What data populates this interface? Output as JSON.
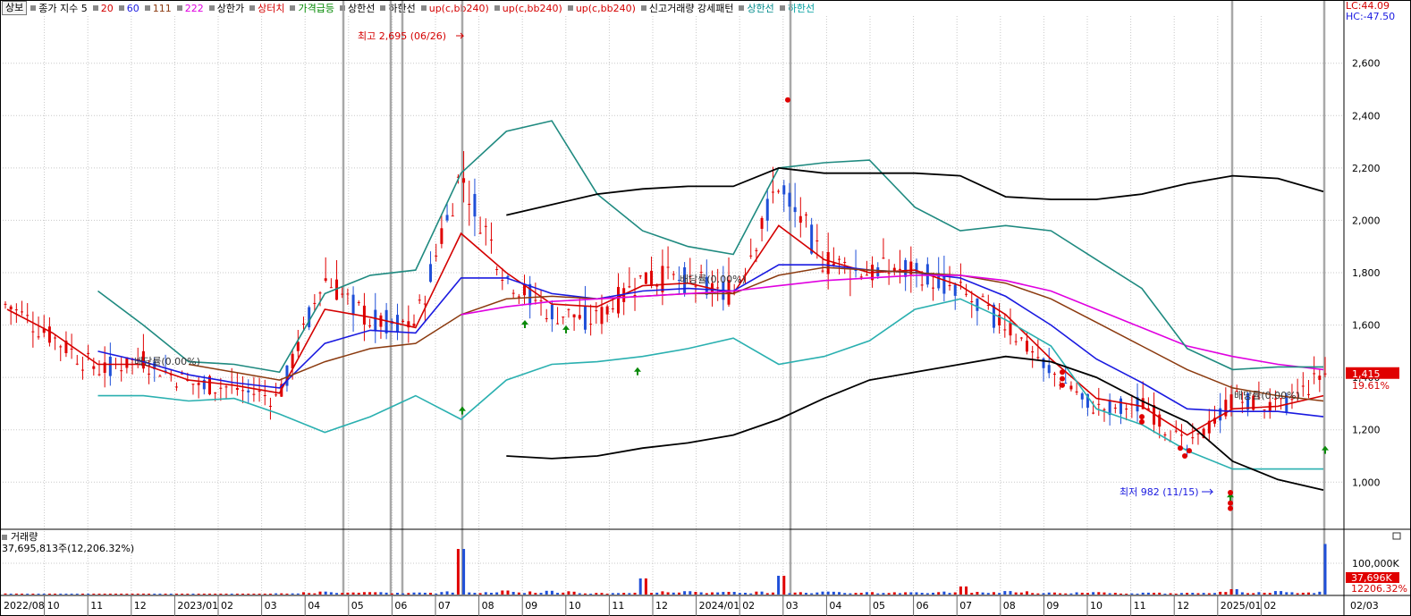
{
  "legend": {
    "tab": "상보",
    "items": [
      {
        "label": "종가 지수 5",
        "color": "#000000"
      },
      {
        "label": "20",
        "color": "#d40000"
      },
      {
        "label": "60",
        "color": "#1a1ae0"
      },
      {
        "label": "111",
        "color": "#8b3a0f"
      },
      {
        "label": "222",
        "color": "#e000e0"
      },
      {
        "label": "상한가",
        "color": "#000000"
      },
      {
        "label": "상터치",
        "color": "#d40000"
      },
      {
        "label": "가격급등",
        "color": "#008800"
      },
      {
        "label": "상한선",
        "color": "#000000"
      },
      {
        "label": "하한선",
        "color": "#000000"
      },
      {
        "label": "up(c,bb240)",
        "color": "#d40000"
      },
      {
        "label": "up(c,bb240)",
        "color": "#d40000"
      },
      {
        "label": "up(c,bb240)",
        "color": "#d40000"
      },
      {
        "label": "신고거래량 강세패턴",
        "color": "#000000"
      },
      {
        "label": "상한선",
        "color": "#008b8b"
      },
      {
        "label": "하한선",
        "color": "#00a0a0"
      }
    ]
  },
  "lc_hc": {
    "lc": "LC:44.09",
    "hc": "HC:-47.50"
  },
  "annotations": {
    "high": "최고 2,695 (06/26)",
    "low": "최저 982 (11/15)",
    "divrate": "배당률(0.00%)"
  },
  "current": {
    "price": "1,415",
    "change": "19.61%"
  },
  "volume": {
    "title": "거래량",
    "value": "37,695,813주(12,206.32%)",
    "axis_label": "100,000K",
    "cur": "37,696K",
    "pct": "12206.32%"
  },
  "x_axis_labels": [
    "2022/08",
    "10",
    "11",
    "12",
    "2023/01",
    "02",
    "03",
    "04",
    "05",
    "06",
    "07",
    "08",
    "09",
    "10",
    "11",
    "12",
    "2024/01",
    "02",
    "03",
    "04",
    "05",
    "06",
    "07",
    "08",
    "09",
    "10",
    "11",
    "12",
    "2025/01",
    "02",
    "02/03"
  ],
  "colors": {
    "up": "#e00000",
    "down": "#1f4fd8",
    "ma5": "#000000",
    "ma20": "#d40000",
    "ma60": "#1a1ae0",
    "ma111": "#8b3a0f",
    "ma222": "#e000e0",
    "bb_upper": "#1f8a80",
    "bb_lower": "#2ab0b0",
    "env": "#000000",
    "grid": "#c8c8c8"
  },
  "chart_data": {
    "type": "line",
    "title": "",
    "ylim": [
      820,
      2780
    ],
    "y_ticks": [
      1000,
      1200,
      1400,
      1600,
      1800,
      2000,
      2200,
      2400,
      2600
    ],
    "y_tick_labels": [
      "1,000",
      "1,200",
      "1,400",
      "1,600",
      "1,800",
      "2,000",
      "2,200",
      "2,400",
      "2,600"
    ],
    "categories": [
      "2022/08",
      "10",
      "11",
      "12",
      "2023/01",
      "02",
      "03",
      "04",
      "05",
      "06",
      "07",
      "08",
      "09",
      "10",
      "11",
      "12",
      "2024/01",
      "02",
      "03",
      "04",
      "05",
      "06",
      "07",
      "08",
      "09",
      "10",
      "11",
      "12",
      "2025/01",
      "02"
    ],
    "series": [
      {
        "key": "close",
        "values": [
          1680,
          1560,
          1430,
          1470,
          1380,
          1360,
          1320,
          1780,
          1620,
          1600,
          2180,
          1790,
          1650,
          1620,
          1780,
          1770,
          1720,
          2150,
          1840,
          1800,
          1820,
          1720,
          1600,
          1420,
          1280,
          1300,
          1120,
          1320,
          1280,
          1415
        ]
      },
      {
        "key": "ma20",
        "values": [
          1660,
          1570,
          1450,
          1450,
          1390,
          1370,
          1340,
          1660,
          1630,
          1590,
          1950,
          1800,
          1680,
          1670,
          1750,
          1760,
          1720,
          1980,
          1850,
          1800,
          1810,
          1750,
          1640,
          1470,
          1320,
          1290,
          1180,
          1280,
          1290,
          1330
        ]
      },
      {
        "key": "ma60",
        "values": [
          null,
          null,
          1500,
          1460,
          1410,
          1380,
          1360,
          1530,
          1580,
          1570,
          1780,
          1780,
          1720,
          1700,
          1730,
          1740,
          1730,
          1830,
          1830,
          1810,
          1800,
          1780,
          1710,
          1600,
          1470,
          1380,
          1280,
          1270,
          1270,
          1250
        ]
      },
      {
        "key": "ma111",
        "values": [
          null,
          null,
          null,
          null,
          1450,
          1420,
          1390,
          1460,
          1510,
          1530,
          1640,
          1700,
          1710,
          1700,
          1710,
          1720,
          1720,
          1790,
          1820,
          1810,
          1800,
          1790,
          1760,
          1700,
          1610,
          1520,
          1430,
          1360,
          1330,
          1310
        ]
      },
      {
        "key": "ma222",
        "values": [
          null,
          null,
          null,
          null,
          null,
          null,
          null,
          null,
          null,
          null,
          1640,
          1670,
          1690,
          1700,
          1710,
          1720,
          1730,
          1750,
          1770,
          1780,
          1790,
          1790,
          1770,
          1730,
          1660,
          1590,
          1520,
          1480,
          1450,
          1430
        ]
      },
      {
        "key": "bb_upper",
        "values": [
          null,
          null,
          1730,
          1600,
          1460,
          1450,
          1420,
          1720,
          1790,
          1810,
          2180,
          2340,
          2380,
          2100,
          1960,
          1900,
          1870,
          2200,
          2220,
          2230,
          2050,
          1960,
          1980,
          1960,
          1850,
          1740,
          1510,
          1430,
          1440,
          1440
        ]
      },
      {
        "key": "bb_lower",
        "values": [
          null,
          null,
          1330,
          1330,
          1310,
          1320,
          1260,
          1190,
          1250,
          1330,
          1240,
          1390,
          1450,
          1460,
          1480,
          1510,
          1550,
          1450,
          1480,
          1540,
          1660,
          1700,
          1620,
          1520,
          1280,
          1220,
          1120,
          1050,
          1050,
          1050
        ]
      },
      {
        "key": "env_upper",
        "values": [
          null,
          null,
          null,
          null,
          null,
          null,
          null,
          null,
          null,
          null,
          null,
          2020,
          2060,
          2100,
          2120,
          2130,
          2130,
          2200,
          2180,
          2180,
          2180,
          2170,
          2090,
          2080,
          2080,
          2100,
          2140,
          2170,
          2160,
          2110
        ]
      },
      {
        "key": "env_lower",
        "values": [
          null,
          null,
          null,
          null,
          null,
          null,
          null,
          null,
          null,
          null,
          null,
          1100,
          1090,
          1100,
          1130,
          1150,
          1180,
          1240,
          1320,
          1390,
          1420,
          1450,
          1480,
          1460,
          1400,
          1310,
          1230,
          1080,
          1010,
          970
        ]
      }
    ],
    "volume": {
      "unit": "K",
      "values": [
        800,
        600,
        500,
        700,
        600,
        500,
        900,
        2200,
        1800,
        1500,
        34000,
        3000,
        2800,
        1200,
        12000,
        2500,
        2000,
        14000,
        2200,
        1800,
        1700,
        6000,
        2600,
        1500,
        1800,
        1400,
        1300,
        4000,
        2600,
        37696
      ]
    }
  }
}
